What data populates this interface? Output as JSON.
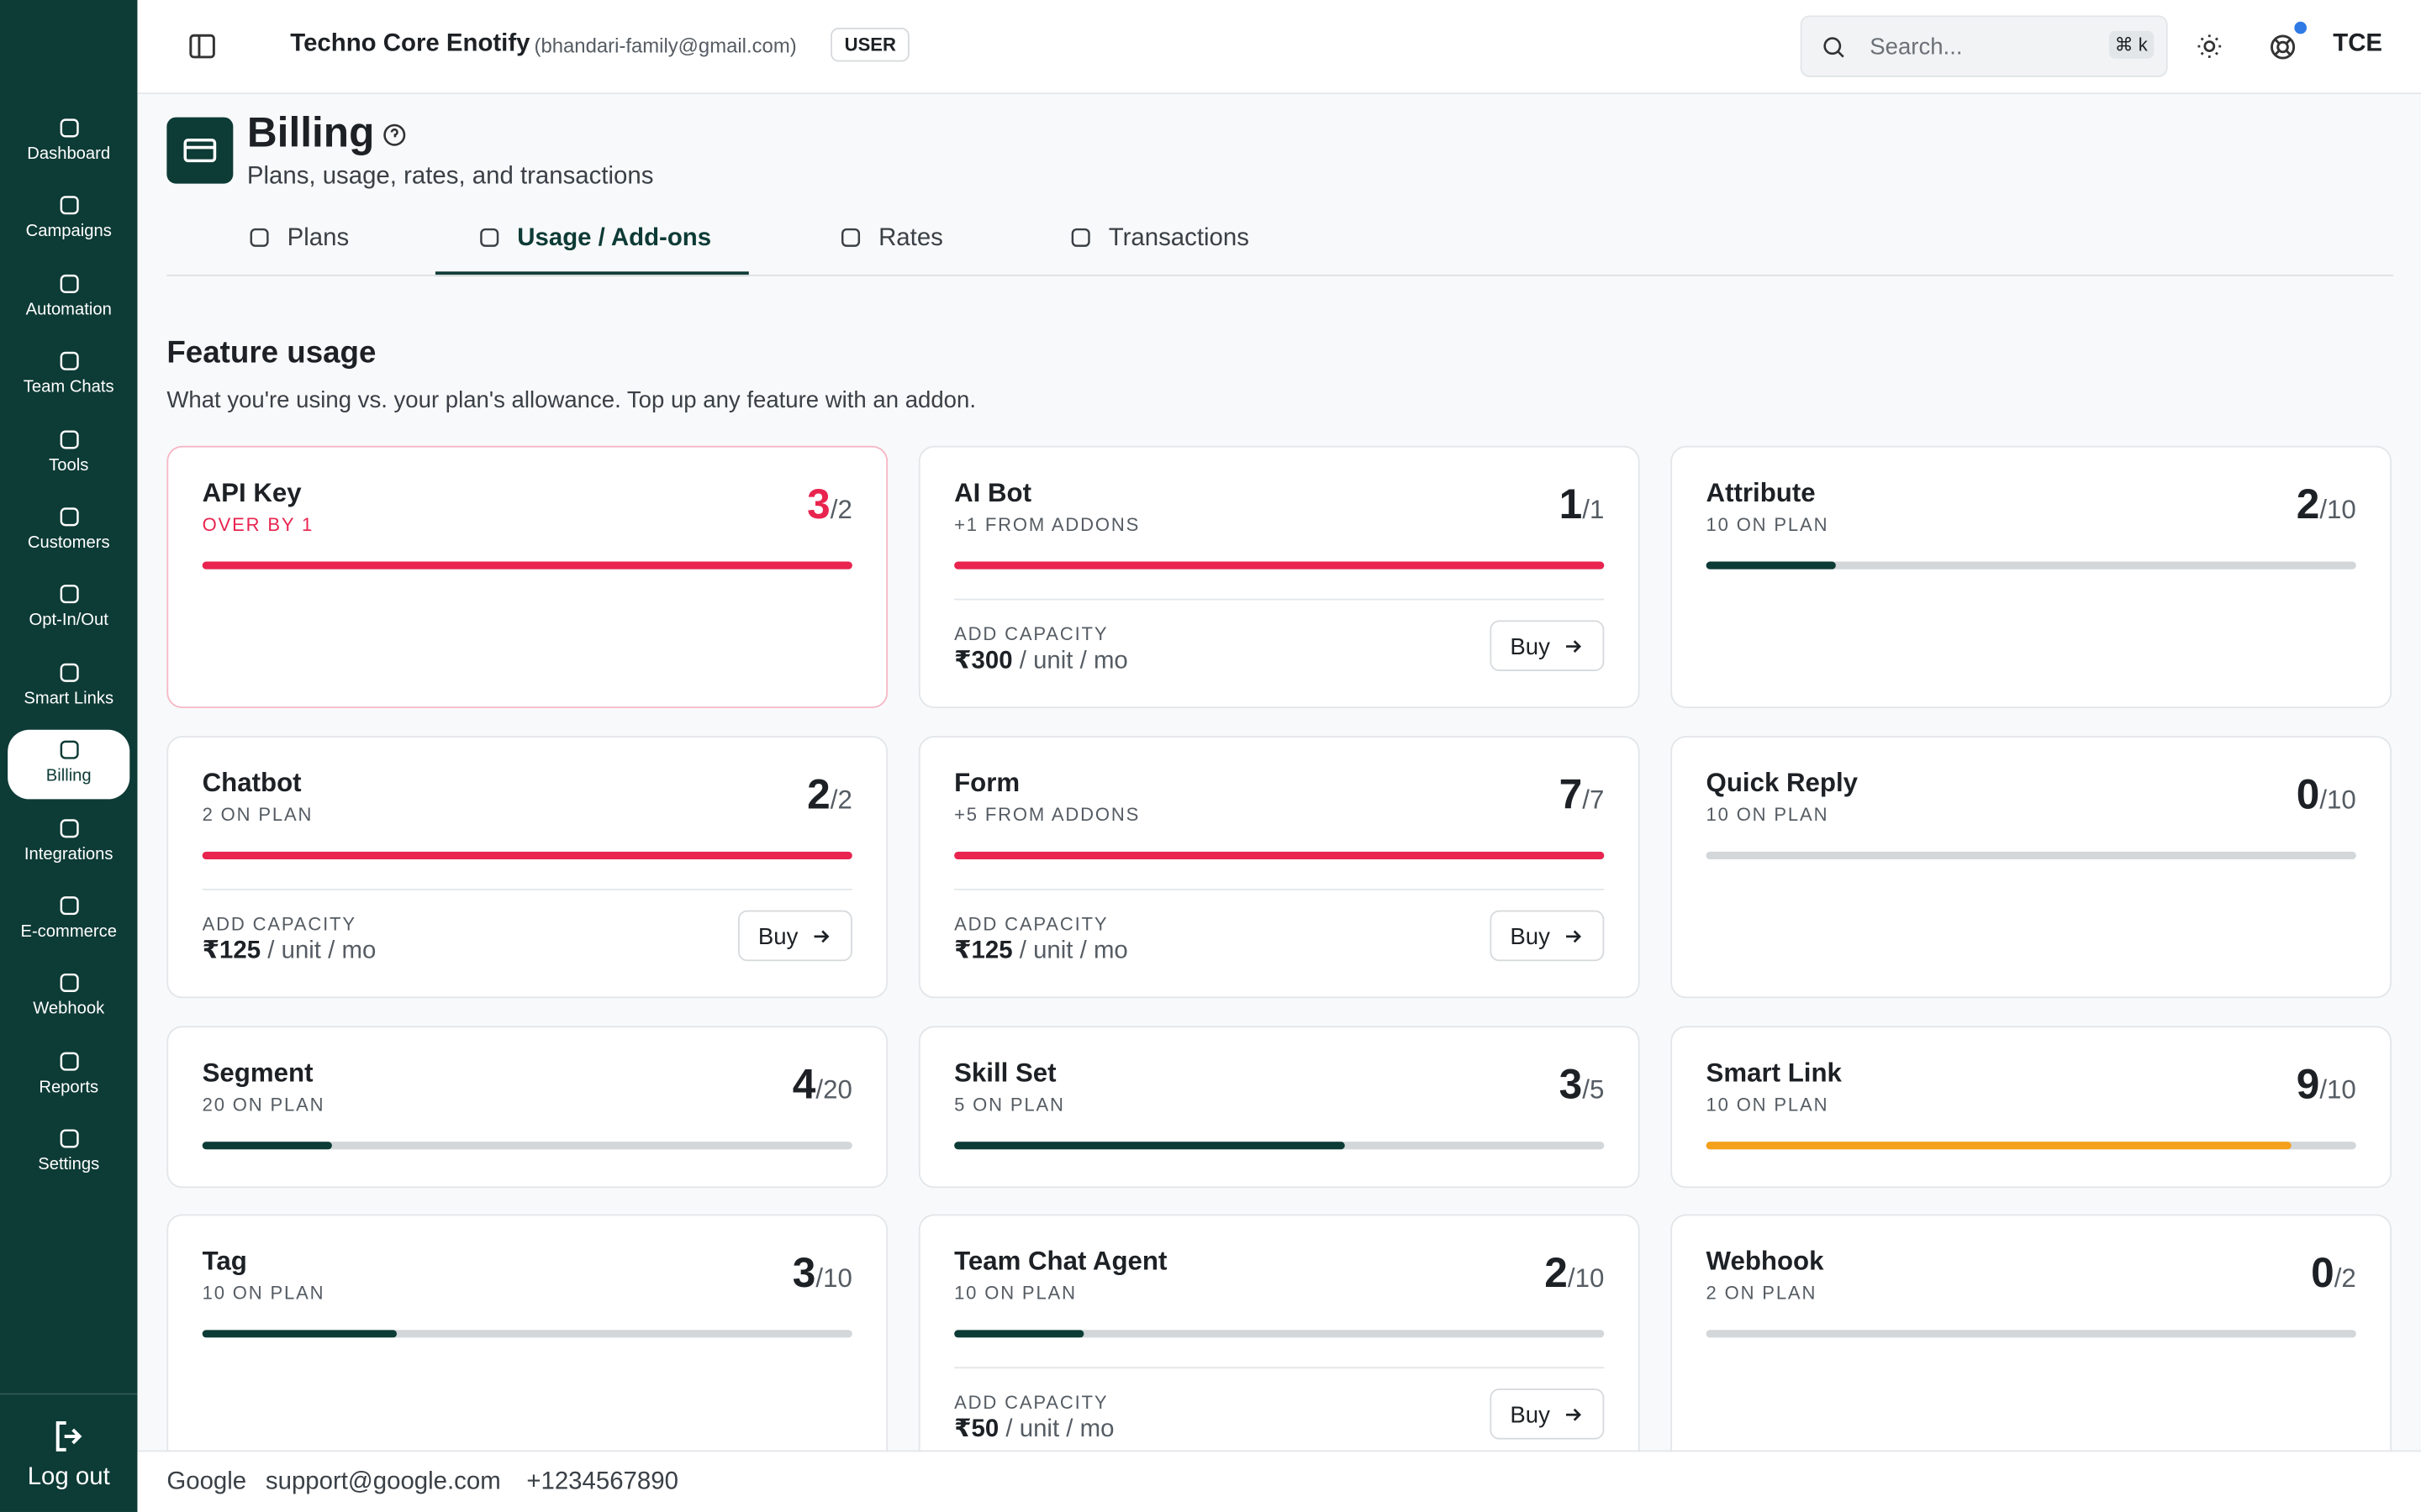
{
  "sidebar": {
    "items": [
      "Dashboard",
      "Campaigns",
      "Automation",
      "Team Chats",
      "Tools",
      "Customers",
      "Opt-In/Out",
      "Smart Links",
      "Billing",
      "Integrations",
      "E-commerce",
      "Webhook",
      "Reports",
      "Settings"
    ],
    "active": 8,
    "logout": "Log out"
  },
  "header": {
    "org": "Techno Core Enotify",
    "email": "(bhandari-family@gmail.com)",
    "role": "USER",
    "search": "Search...",
    "shortcut": "⌘ k",
    "avatar": "TCE"
  },
  "page": {
    "title": "Billing",
    "subtitle": "Plans, usage, rates, and transactions",
    "tabs": [
      "Plans",
      "Usage / Add-ons",
      "Rates",
      "Transactions"
    ],
    "active_tab": 1
  },
  "section": {
    "title": "Feature usage",
    "description": "What you're using vs. your plan's allowance. Top up any feature with an addon.",
    "separator": "/",
    "cards": [
      {
        "name": "API Key",
        "sub": "OVER BY 1",
        "used": 3,
        "total": 2,
        "color": "#e8244f",
        "accent": "#e8244f"
      },
      {
        "name": "AI Bot",
        "sub": "+1 FROM ADDONS",
        "used": 1,
        "total": 1,
        "color": "#e8244f",
        "addon": {
          "label": "ADD CAPACITY",
          "price": "₹300",
          "unit": "/ unit / mo",
          "button": "Buy"
        }
      },
      {
        "name": "Attribute",
        "sub": "10 ON PLAN",
        "used": 2,
        "total": 10,
        "color": "#0d3b36"
      },
      {
        "name": "Chatbot",
        "sub": "2 ON PLAN",
        "used": 2,
        "total": 2,
        "color": "#e8244f",
        "addon": {
          "label": "ADD CAPACITY",
          "price": "₹125",
          "unit": "/ unit / mo",
          "button": "Buy"
        }
      },
      {
        "name": "Form",
        "sub": "+5 FROM ADDONS",
        "used": 7,
        "total": 7,
        "color": "#e8244f",
        "addon": {
          "label": "ADD CAPACITY",
          "price": "₹125",
          "unit": "/ unit / mo",
          "button": "Buy"
        }
      },
      {
        "name": "Quick Reply",
        "sub": "10 ON PLAN",
        "used": 0,
        "total": 10,
        "color": "#0d3b36"
      },
      {
        "name": "Segment",
        "sub": "20 ON PLAN",
        "used": 4,
        "total": 20,
        "color": "#0d3b36"
      },
      {
        "name": "Skill Set",
        "sub": "5 ON PLAN",
        "used": 3,
        "total": 5,
        "color": "#0d3b36"
      },
      {
        "name": "Smart Link",
        "sub": "10 ON PLAN",
        "used": 9,
        "total": 10,
        "color": "#f5a01a"
      },
      {
        "name": "Tag",
        "sub": "10 ON PLAN",
        "used": 3,
        "total": 10,
        "color": "#0d3b36"
      },
      {
        "name": "Team Chat Agent",
        "sub": "10 ON PLAN",
        "used": 2,
        "total": 10,
        "color": "#0d3b36",
        "addon": {
          "label": "ADD CAPACITY",
          "price": "₹50",
          "unit": "/ unit / mo",
          "button": "Buy"
        }
      },
      {
        "name": "Webhook",
        "sub": "2 ON PLAN",
        "used": 0,
        "total": 2,
        "color": "#0d3b36"
      }
    ]
  },
  "footer": {
    "company": "Google",
    "email": "support@google.com",
    "phone": "+1234567890"
  }
}
